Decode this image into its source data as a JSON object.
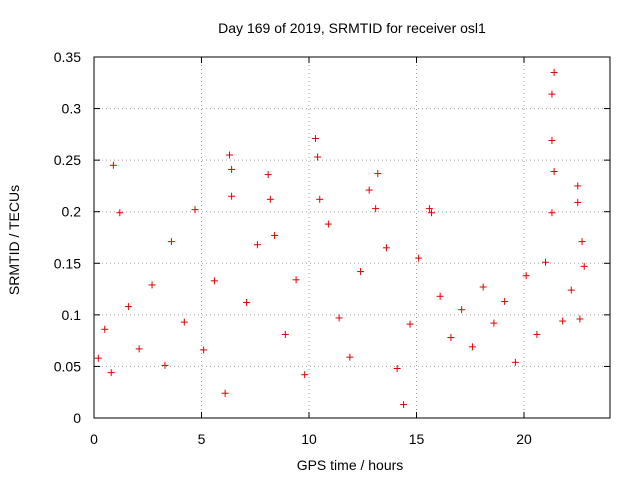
{
  "chart_data": {
    "type": "scatter",
    "title": "Day 169 of 2019, SRMTID for receiver osl1",
    "xlabel": "GPS time / hours",
    "ylabel": "SRMTID / TECUs",
    "xlim": [
      0,
      24
    ],
    "ylim": [
      0,
      0.35
    ],
    "xticks": [
      0,
      5,
      10,
      15,
      20
    ],
    "xtick_labels": [
      "0",
      "5",
      "10",
      "15",
      "20"
    ],
    "yticks": [
      0,
      0.05,
      0.1,
      0.15,
      0.2,
      0.25,
      0.3,
      0.35
    ],
    "ytick_labels": [
      "0",
      "0.05",
      "0.1",
      "0.15",
      "0.2",
      "0.25",
      "0.3",
      "0.35"
    ],
    "grid": true,
    "marker": "+",
    "color": "#e00000",
    "series": [
      {
        "name": "SRMTID",
        "points": [
          [
            0.2,
            0.058
          ],
          [
            0.5,
            0.086
          ],
          [
            0.8,
            0.044
          ],
          [
            0.9,
            0.245
          ],
          [
            1.2,
            0.199
          ],
          [
            1.6,
            0.108
          ],
          [
            2.1,
            0.067
          ],
          [
            2.7,
            0.129
          ],
          [
            3.3,
            0.051
          ],
          [
            3.6,
            0.171
          ],
          [
            4.2,
            0.093
          ],
          [
            4.7,
            0.202
          ],
          [
            5.1,
            0.066
          ],
          [
            5.6,
            0.133
          ],
          [
            6.1,
            0.024
          ],
          [
            6.3,
            0.255
          ],
          [
            6.4,
            0.241
          ],
          [
            6.4,
            0.215
          ],
          [
            7.1,
            0.112
          ],
          [
            7.6,
            0.168
          ],
          [
            8.1,
            0.236
          ],
          [
            8.2,
            0.212
          ],
          [
            8.4,
            0.177
          ],
          [
            8.9,
            0.081
          ],
          [
            9.4,
            0.134
          ],
          [
            9.8,
            0.042
          ],
          [
            10.3,
            0.271
          ],
          [
            10.4,
            0.253
          ],
          [
            10.5,
            0.212
          ],
          [
            10.9,
            0.188
          ],
          [
            11.4,
            0.097
          ],
          [
            11.9,
            0.059
          ],
          [
            12.4,
            0.142
          ],
          [
            12.8,
            0.221
          ],
          [
            13.2,
            0.237
          ],
          [
            13.1,
            0.203
          ],
          [
            13.6,
            0.165
          ],
          [
            14.1,
            0.048
          ],
          [
            14.4,
            0.013
          ],
          [
            14.7,
            0.091
          ],
          [
            15.1,
            0.155
          ],
          [
            15.6,
            0.203
          ],
          [
            15.7,
            0.199
          ],
          [
            16.1,
            0.118
          ],
          [
            16.6,
            0.078
          ],
          [
            17.1,
            0.105
          ],
          [
            17.6,
            0.069
          ],
          [
            18.1,
            0.127
          ],
          [
            18.6,
            0.092
          ],
          [
            19.1,
            0.113
          ],
          [
            19.6,
            0.054
          ],
          [
            20.1,
            0.138
          ],
          [
            20.6,
            0.081
          ],
          [
            21.0,
            0.151
          ],
          [
            21.3,
            0.314
          ],
          [
            21.4,
            0.335
          ],
          [
            21.3,
            0.269
          ],
          [
            21.4,
            0.239
          ],
          [
            21.3,
            0.199
          ],
          [
            21.8,
            0.094
          ],
          [
            22.2,
            0.124
          ],
          [
            22.5,
            0.225
          ],
          [
            22.5,
            0.209
          ],
          [
            22.7,
            0.171
          ],
          [
            22.8,
            0.147
          ],
          [
            22.6,
            0.096
          ]
        ]
      }
    ]
  }
}
